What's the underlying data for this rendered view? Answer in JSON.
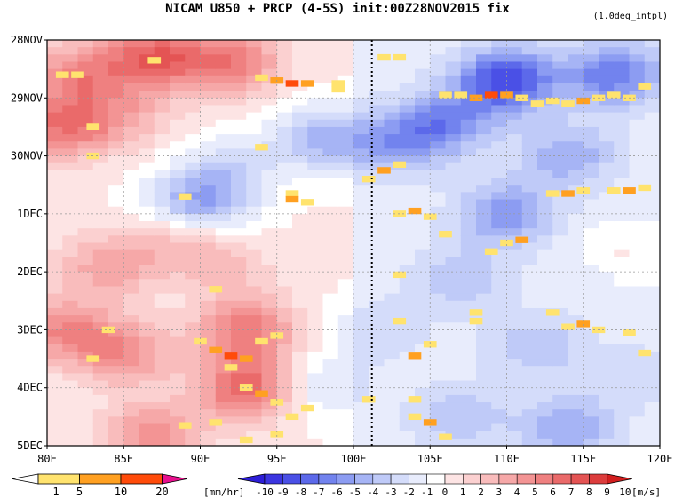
{
  "title": "NICAM  U850 + PRCP (4-5S) init:00Z28NOV2015 fix",
  "note": "(1.0deg_intpl)",
  "chart_data": {
    "type": "heatmap",
    "x_axis": {
      "range": [
        80,
        120
      ],
      "ticks": [
        80,
        85,
        90,
        95,
        100,
        105,
        110,
        115,
        120
      ],
      "tick_labels": [
        "80E",
        "85E",
        "90E",
        "95E",
        "100E",
        "105E",
        "110E",
        "115E",
        "120E"
      ]
    },
    "y_axis": {
      "range_days": [
        "28NOV",
        "5DEC"
      ],
      "tick_labels": [
        "28NOV",
        "29NOV",
        "30NOV",
        "1DEC",
        "2DEC",
        "3DEC",
        "4DEC",
        "5DEC"
      ]
    },
    "reference_line": {
      "x": 101.2,
      "style": "dotted"
    },
    "u850_field": {
      "units": "[m/s]",
      "levels": [
        -10,
        -9,
        -8,
        -7,
        -6,
        -5,
        -4,
        -3,
        -2,
        -1,
        0,
        1,
        2,
        3,
        4,
        5,
        6,
        7,
        8,
        9,
        10
      ],
      "level_labels": [
        "-10",
        "-9",
        "-8",
        "-7",
        "-6",
        "-5",
        "-4",
        "-3",
        "-2",
        "-1",
        "0",
        "1",
        "2",
        "3",
        "4",
        "5",
        "6",
        "7",
        "8",
        "9",
        "10"
      ],
      "colors": [
        "#2d1ed8",
        "#3b35e0",
        "#4a50e6",
        "#5c69ea",
        "#7283ee",
        "#8c9cf2",
        "#a6b4f5",
        "#bfcaf8",
        "#d4dcfa",
        "#e8ecfc",
        "#ffffff",
        "#fde4e4",
        "#fbd0d0",
        "#f9bcbc",
        "#f6a8a8",
        "#f39494",
        "#ef8080",
        "#ea6a6a",
        "#e45454",
        "#dc3c3c",
        "#d21e1e"
      ],
      "features": [
        {
          "x": 87,
          "t": 0.3,
          "u": 7
        },
        {
          "x": 82,
          "t": 0.6,
          "u": 5
        },
        {
          "x": 92,
          "t": 0.4,
          "u": 6
        },
        {
          "x": 85,
          "t": 1.3,
          "u": 3
        },
        {
          "x": 81,
          "t": 1.5,
          "u": 6
        },
        {
          "x": 92,
          "t": 2.2,
          "u": -2
        },
        {
          "x": 98,
          "t": 1.7,
          "u": -4
        },
        {
          "x": 90,
          "t": 2.8,
          "u": -5
        },
        {
          "x": 89,
          "t": 3.5,
          "u": 3
        },
        {
          "x": 84,
          "t": 3.9,
          "u": 4
        },
        {
          "x": 92,
          "t": 4.0,
          "u": 2
        },
        {
          "x": 93,
          "t": 5.0,
          "u": 6
        },
        {
          "x": 85,
          "t": 5.4,
          "u": 5
        },
        {
          "x": 81,
          "t": 5.0,
          "u": 5
        },
        {
          "x": 93,
          "t": 6.0,
          "u": 7
        },
        {
          "x": 87,
          "t": 6.8,
          "u": 5
        },
        {
          "x": 98,
          "t": 6.0,
          "u": -2
        },
        {
          "x": 103,
          "t": 1.8,
          "u": -4
        },
        {
          "x": 110,
          "t": 0.7,
          "u": -8
        },
        {
          "x": 117,
          "t": 0.6,
          "u": -6
        },
        {
          "x": 106,
          "t": 1.4,
          "u": -5
        },
        {
          "x": 114,
          "t": 2.0,
          "u": -4
        },
        {
          "x": 110,
          "t": 3.0,
          "u": -5
        },
        {
          "x": 107,
          "t": 4.1,
          "u": -3
        },
        {
          "x": 116,
          "t": 4.0,
          "u": -2
        },
        {
          "x": 117,
          "t": 3.8,
          "u": 2
        },
        {
          "x": 112,
          "t": 5.3,
          "u": -3
        },
        {
          "x": 118,
          "t": 5.8,
          "u": -2
        },
        {
          "x": 107,
          "t": 6.5,
          "u": -3
        },
        {
          "x": 114,
          "t": 6.7,
          "u": -4
        },
        {
          "x": 102,
          "t": 5.0,
          "u": -2
        }
      ]
    },
    "prcp_field": {
      "units": "[mm/hr]",
      "levels": [
        1,
        5,
        10,
        20
      ],
      "level_labels": [
        "1",
        "5",
        "10",
        "20"
      ],
      "colors": [
        "#ffffff",
        "#ffe36e",
        "#ffa021",
        "#ff4b0a",
        "#e8108e"
      ],
      "cells": [
        [
          81,
          0.6,
          1
        ],
        [
          82,
          0.6,
          1
        ],
        [
          87,
          0.35,
          1
        ],
        [
          94,
          0.65,
          1
        ],
        [
          95,
          0.7,
          2
        ],
        [
          96,
          0.75,
          3
        ],
        [
          97,
          0.75,
          2
        ],
        [
          99,
          0.75,
          1
        ],
        [
          99,
          0.85,
          1
        ],
        [
          83,
          2.0,
          1
        ],
        [
          83,
          1.5,
          1
        ],
        [
          94,
          1.85,
          1
        ],
        [
          96,
          2.65,
          1
        ],
        [
          96,
          2.75,
          2
        ],
        [
          97,
          2.8,
          1
        ],
        [
          89,
          2.7,
          1
        ],
        [
          91,
          4.3,
          1
        ],
        [
          90,
          5.2,
          1
        ],
        [
          91,
          5.35,
          2
        ],
        [
          92,
          5.45,
          3
        ],
        [
          93,
          5.5,
          2
        ],
        [
          92,
          5.65,
          1
        ],
        [
          94,
          5.2,
          1
        ],
        [
          95,
          5.1,
          1
        ],
        [
          93,
          6.0,
          1
        ],
        [
          94,
          6.1,
          2
        ],
        [
          95,
          6.25,
          1
        ],
        [
          96,
          6.5,
          1
        ],
        [
          97,
          6.35,
          1
        ],
        [
          95,
          6.8,
          1
        ],
        [
          91,
          6.6,
          1
        ],
        [
          89,
          6.65,
          1
        ],
        [
          93,
          6.9,
          1
        ],
        [
          84,
          5.0,
          1
        ],
        [
          83,
          5.5,
          1
        ],
        [
          102,
          0.3,
          1
        ],
        [
          103,
          0.3,
          1
        ],
        [
          106,
          0.95,
          1
        ],
        [
          107,
          0.95,
          1
        ],
        [
          108,
          1.0,
          2
        ],
        [
          109,
          0.95,
          3
        ],
        [
          110,
          0.95,
          2
        ],
        [
          111,
          1.0,
          1
        ],
        [
          112,
          1.1,
          1
        ],
        [
          113,
          1.05,
          1
        ],
        [
          114,
          1.1,
          1
        ],
        [
          115,
          1.05,
          2
        ],
        [
          116,
          1.0,
          1
        ],
        [
          117,
          0.95,
          1
        ],
        [
          118,
          1.0,
          1
        ],
        [
          119,
          0.8,
          1
        ],
        [
          101,
          2.4,
          1
        ],
        [
          102,
          2.25,
          2
        ],
        [
          103,
          2.15,
          1
        ],
        [
          103,
          3.0,
          1
        ],
        [
          104,
          2.95,
          2
        ],
        [
          105,
          3.05,
          1
        ],
        [
          106,
          3.35,
          1
        ],
        [
          109,
          3.65,
          1
        ],
        [
          110,
          3.5,
          1
        ],
        [
          111,
          3.45,
          2
        ],
        [
          113,
          2.65,
          1
        ],
        [
          114,
          2.65,
          2
        ],
        [
          115,
          2.6,
          1
        ],
        [
          117,
          2.6,
          1
        ],
        [
          118,
          2.6,
          2
        ],
        [
          119,
          2.55,
          1
        ],
        [
          103,
          4.05,
          1
        ],
        [
          103,
          4.85,
          1
        ],
        [
          104,
          5.45,
          2
        ],
        [
          105,
          5.25,
          1
        ],
        [
          108,
          4.7,
          1
        ],
        [
          108,
          4.85,
          1
        ],
        [
          113,
          4.7,
          1
        ],
        [
          114,
          4.95,
          1
        ],
        [
          115,
          4.9,
          2
        ],
        [
          116,
          5.0,
          1
        ],
        [
          118,
          5.05,
          1
        ],
        [
          119,
          5.4,
          1
        ],
        [
          104,
          6.2,
          1
        ],
        [
          104,
          6.5,
          1
        ],
        [
          105,
          6.6,
          2
        ],
        [
          106,
          6.85,
          1
        ],
        [
          101,
          6.2,
          1
        ]
      ]
    }
  }
}
